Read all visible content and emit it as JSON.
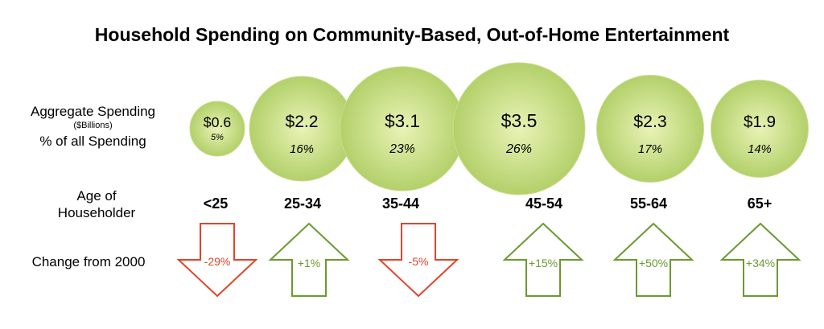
{
  "chart_data": {
    "type": "bubble",
    "title": "Household Spending on Community-Based, Out-of-Home Entertainment",
    "row_labels": {
      "spending": "Aggregate Spending",
      "spending_unit": "($Billions)",
      "share": "% of all Spending",
      "age": "Age of Householder",
      "change": "Change from 2000"
    },
    "categories": [
      "<25",
      "25-34",
      "35-44",
      "45-54",
      "55-64",
      "65+"
    ],
    "spending_billions": [
      0.6,
      2.2,
      3.1,
      3.5,
      2.3,
      1.9
    ],
    "spending_labels": [
      "$0.6",
      "$2.2",
      "$3.1",
      "$3.5",
      "$2.3",
      "$1.9"
    ],
    "share_labels": [
      "5%",
      "16%",
      "23%",
      "26%",
      "17%",
      "14%"
    ],
    "change_pct": [
      -29,
      1,
      -5,
      15,
      50,
      34
    ],
    "change_labels": [
      "-29%",
      "+1%",
      "-5%",
      "+15%",
      "+50%",
      "+34%"
    ],
    "colors": {
      "bubble_light": "#e9f3b6",
      "bubble_dark": "#b3d06a",
      "bubble_edge": "#c8dc8a",
      "up": "#6a9a2e",
      "down": "#e0452a"
    }
  }
}
